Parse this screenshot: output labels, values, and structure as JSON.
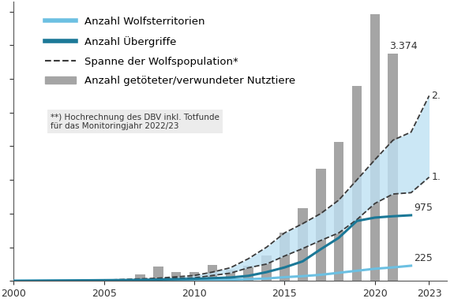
{
  "chart_data": {
    "type": "combo",
    "x": [
      2000,
      2001,
      2002,
      2003,
      2004,
      2005,
      2006,
      2007,
      2008,
      2009,
      2010,
      2011,
      2012,
      2013,
      2014,
      2015,
      2016,
      2017,
      2018,
      2019,
      2020,
      2021,
      2022,
      2023
    ],
    "series": [
      {
        "name": "Anzahl Wolfsterritorien",
        "type": "line",
        "color": "#6cc0e2",
        "line_style": "solid",
        "values": [
          1,
          1,
          2,
          2,
          3,
          4,
          5,
          6,
          8,
          9,
          10,
          14,
          18,
          25,
          35,
          55,
          70,
          90,
          120,
          150,
          180,
          200,
          225,
          null
        ],
        "value_labels": [
          null,
          null,
          null,
          null,
          null,
          null,
          null,
          null,
          null,
          null,
          null,
          null,
          null,
          null,
          null,
          null,
          null,
          null,
          null,
          null,
          null,
          null,
          "225",
          null
        ]
      },
      {
        "name": "Anzahl Übergriffe",
        "type": "line",
        "color": "#1b7897",
        "line_style": "solid",
        "values": [
          0,
          2,
          4,
          6,
          8,
          10,
          12,
          15,
          20,
          25,
          30,
          40,
          50,
          75,
          130,
          200,
          290,
          470,
          640,
          890,
          940,
          960,
          975,
          null
        ],
        "value_labels": [
          null,
          null,
          null,
          null,
          null,
          null,
          null,
          null,
          null,
          null,
          null,
          null,
          null,
          null,
          null,
          null,
          null,
          null,
          null,
          null,
          null,
          null,
          "975",
          null
        ]
      },
      {
        "name": "Spanne der Wolfspopulation*",
        "type": "area",
        "color": "#bfe1f3",
        "line_style": "dashed",
        "low": [
          0,
          0,
          0,
          0,
          0,
          5,
          10,
          20,
          30,
          40,
          45,
          80,
          115,
          195,
          250,
          370,
          480,
          600,
          713,
          910,
          1150,
          1290,
          1310,
          1540
        ],
        "high": [
          0,
          0,
          0,
          0,
          5,
          10,
          20,
          30,
          40,
          60,
          80,
          130,
          195,
          330,
          500,
          713,
          850,
          1000,
          1200,
          1500,
          1800,
          2090,
          2210,
          2750
        ],
        "low_labels": [
          null,
          null,
          null,
          null,
          null,
          null,
          null,
          null,
          null,
          null,
          null,
          null,
          null,
          null,
          null,
          null,
          null,
          null,
          null,
          null,
          null,
          null,
          null,
          "1."
        ],
        "high_labels": [
          null,
          null,
          null,
          null,
          null,
          null,
          null,
          null,
          null,
          null,
          null,
          null,
          null,
          null,
          null,
          null,
          null,
          null,
          null,
          null,
          null,
          null,
          null,
          "2."
        ]
      },
      {
        "name": "Anzahl getöteter/verwundeter Nutztiere",
        "type": "bar",
        "color": "#a5a5a5",
        "values": [
          null,
          null,
          null,
          null,
          null,
          null,
          null,
          100,
          210,
          130,
          130,
          240,
          170,
          220,
          380,
          714,
          1080,
          1667,
          2067,
          2890,
          3960,
          3374,
          null,
          null
        ],
        "value_labels": [
          null,
          null,
          null,
          null,
          null,
          null,
          null,
          null,
          null,
          null,
          null,
          null,
          null,
          null,
          null,
          null,
          null,
          null,
          null,
          null,
          null,
          "3.374",
          null,
          null
        ]
      }
    ],
    "note": "**) Hochrechnung des DBV inkl. Totfunde\nfür das Monitoringjahr 2022/23",
    "xlim": [
      2000,
      2024
    ],
    "xticks": [
      2000,
      2005,
      2010,
      2015,
      2020,
      2023
    ],
    "ylim": [
      0,
      4150
    ],
    "yticks": [
      0,
      500,
      1000,
      1500,
      2000,
      2500,
      3000,
      3500,
      4000
    ],
    "tick_labels": "x",
    "legend": "upper left",
    "grid": false,
    "data_labels": true
  }
}
